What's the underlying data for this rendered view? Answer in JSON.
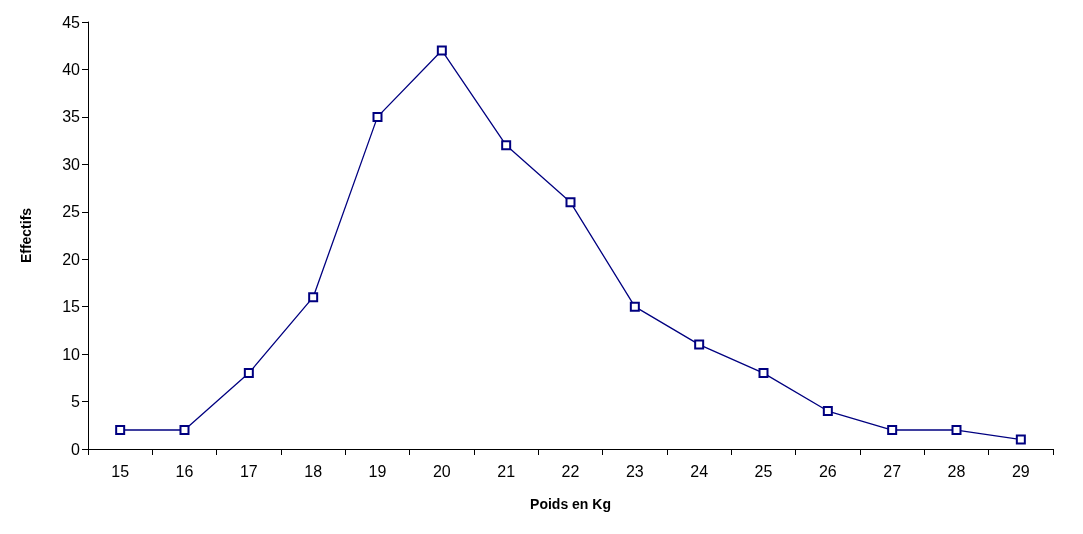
{
  "chart_data": {
    "type": "line",
    "xlabel": "Poids en Kg",
    "ylabel": "Effectifs",
    "categories": [
      "15",
      "16",
      "17",
      "18",
      "19",
      "20",
      "21",
      "22",
      "23",
      "24",
      "25",
      "26",
      "27",
      "28",
      "29"
    ],
    "series": [
      {
        "color": "#000080",
        "values": [
          2,
          2,
          8,
          16,
          35,
          42,
          32,
          26,
          15,
          11,
          8,
          4,
          2,
          2,
          1
        ]
      }
    ],
    "ylim": [
      0,
      45
    ],
    "yticks": [
      0,
      5,
      10,
      15,
      20,
      25,
      30,
      35,
      40,
      45
    ],
    "grid": false,
    "marker": "square",
    "line_style": "solid"
  }
}
